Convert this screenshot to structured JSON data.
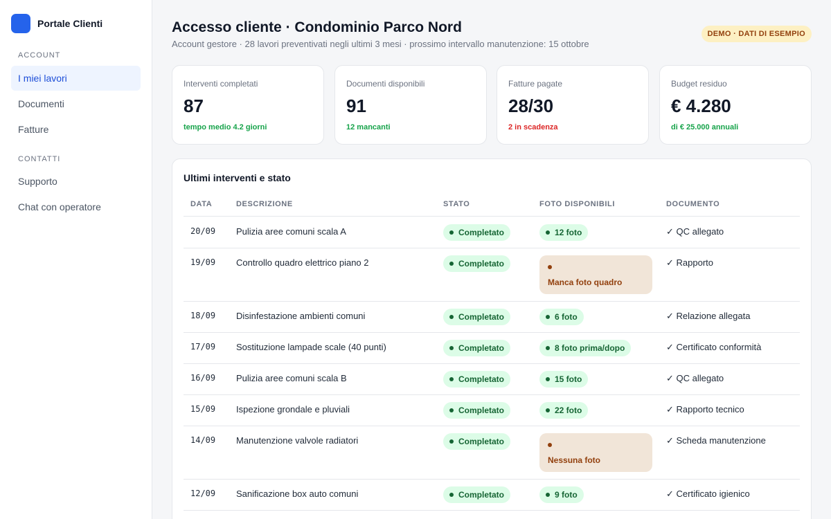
{
  "sidebar": {
    "brand": "Portale Clienti",
    "sections": [
      {
        "title": "ACCOUNT",
        "items": [
          "I miei lavori",
          "Documenti",
          "Fatture"
        ]
      },
      {
        "title": "CONTATTI",
        "items": [
          "Supporto",
          "Chat con operatore"
        ]
      }
    ],
    "active_item": "I miei lavori"
  },
  "header": {
    "title": "Accesso cliente · Condominio Parco Nord",
    "subtitle": "Account gestore · 28 lavori preventivati negli ultimi 3 mesi · prossimo intervallo manutenzione: 15 ottobre",
    "badge": "DEMO · DATI DI ESEMPIO"
  },
  "cards": [
    {
      "label": "Interventi completati",
      "value": "87",
      "note": "tempo medio 4.2 giorni",
      "note_status": "ok"
    },
    {
      "label": "Documenti disponibili",
      "value": "91",
      "note": "12 mancanti",
      "note_status": "ok"
    },
    {
      "label": "Fatture pagate",
      "value": "28/30",
      "note": "2 in scadenza",
      "note_status": "alert"
    },
    {
      "label": "Budget residuo",
      "value": "€ 4.280",
      "note": "di € 25.000 annuali",
      "note_status": "ok"
    }
  ],
  "table": {
    "title": "Ultimi interventi e stato",
    "columns": [
      "DATA",
      "DESCRIZIONE",
      "STATO",
      "FOTO DISPONIBILI",
      "DOCUMENTO"
    ],
    "rows": [
      {
        "data": "20/09",
        "descrizione": "Pulizia aree comuni scala A",
        "stato": "Completato",
        "foto": "12 foto",
        "foto_warning": false,
        "documento": "✓ QC allegato"
      },
      {
        "data": "19/09",
        "descrizione": "Controllo quadro elettrico piano 2",
        "stato": "Completato",
        "foto": "Manca foto quadro",
        "foto_warning": true,
        "documento": "✓ Rapporto"
      },
      {
        "data": "18/09",
        "descrizione": "Disinfestazione ambienti comuni",
        "stato": "Completato",
        "foto": "6 foto",
        "foto_warning": false,
        "documento": "✓ Relazione allegata"
      },
      {
        "data": "17/09",
        "descrizione": "Sostituzione lampade scale (40 punti)",
        "stato": "Completato",
        "foto": "8 foto prima/dopo",
        "foto_warning": false,
        "documento": "✓ Certificato conformità"
      },
      {
        "data": "16/09",
        "descrizione": "Pulizia aree comuni scala B",
        "stato": "Completato",
        "foto": "15 foto",
        "foto_warning": false,
        "documento": "✓ QC allegato"
      },
      {
        "data": "15/09",
        "descrizione": "Ispezione grondale e pluviali",
        "stato": "Completato",
        "foto": "22 foto",
        "foto_warning": false,
        "documento": "✓ Rapporto tecnico"
      },
      {
        "data": "14/09",
        "descrizione": "Manutenzione valvole radiatori",
        "stato": "Completato",
        "foto": "Nessuna foto",
        "foto_warning": true,
        "documento": "✓ Scheda manutenzione"
      },
      {
        "data": "12/09",
        "descrizione": "Sanificazione box auto comuni",
        "stato": "Completato",
        "foto": "9 foto",
        "foto_warning": false,
        "documento": "✓ Certificato igienico"
      }
    ]
  },
  "colors": {
    "accent": "#2563eb",
    "ok_text": "#16a34a",
    "alert_text": "#dc2626",
    "pill_ok_bg": "#dcfce7",
    "pill_warn_bg": "#f1e5d8",
    "badge_bg": "#fdf0c3"
  }
}
